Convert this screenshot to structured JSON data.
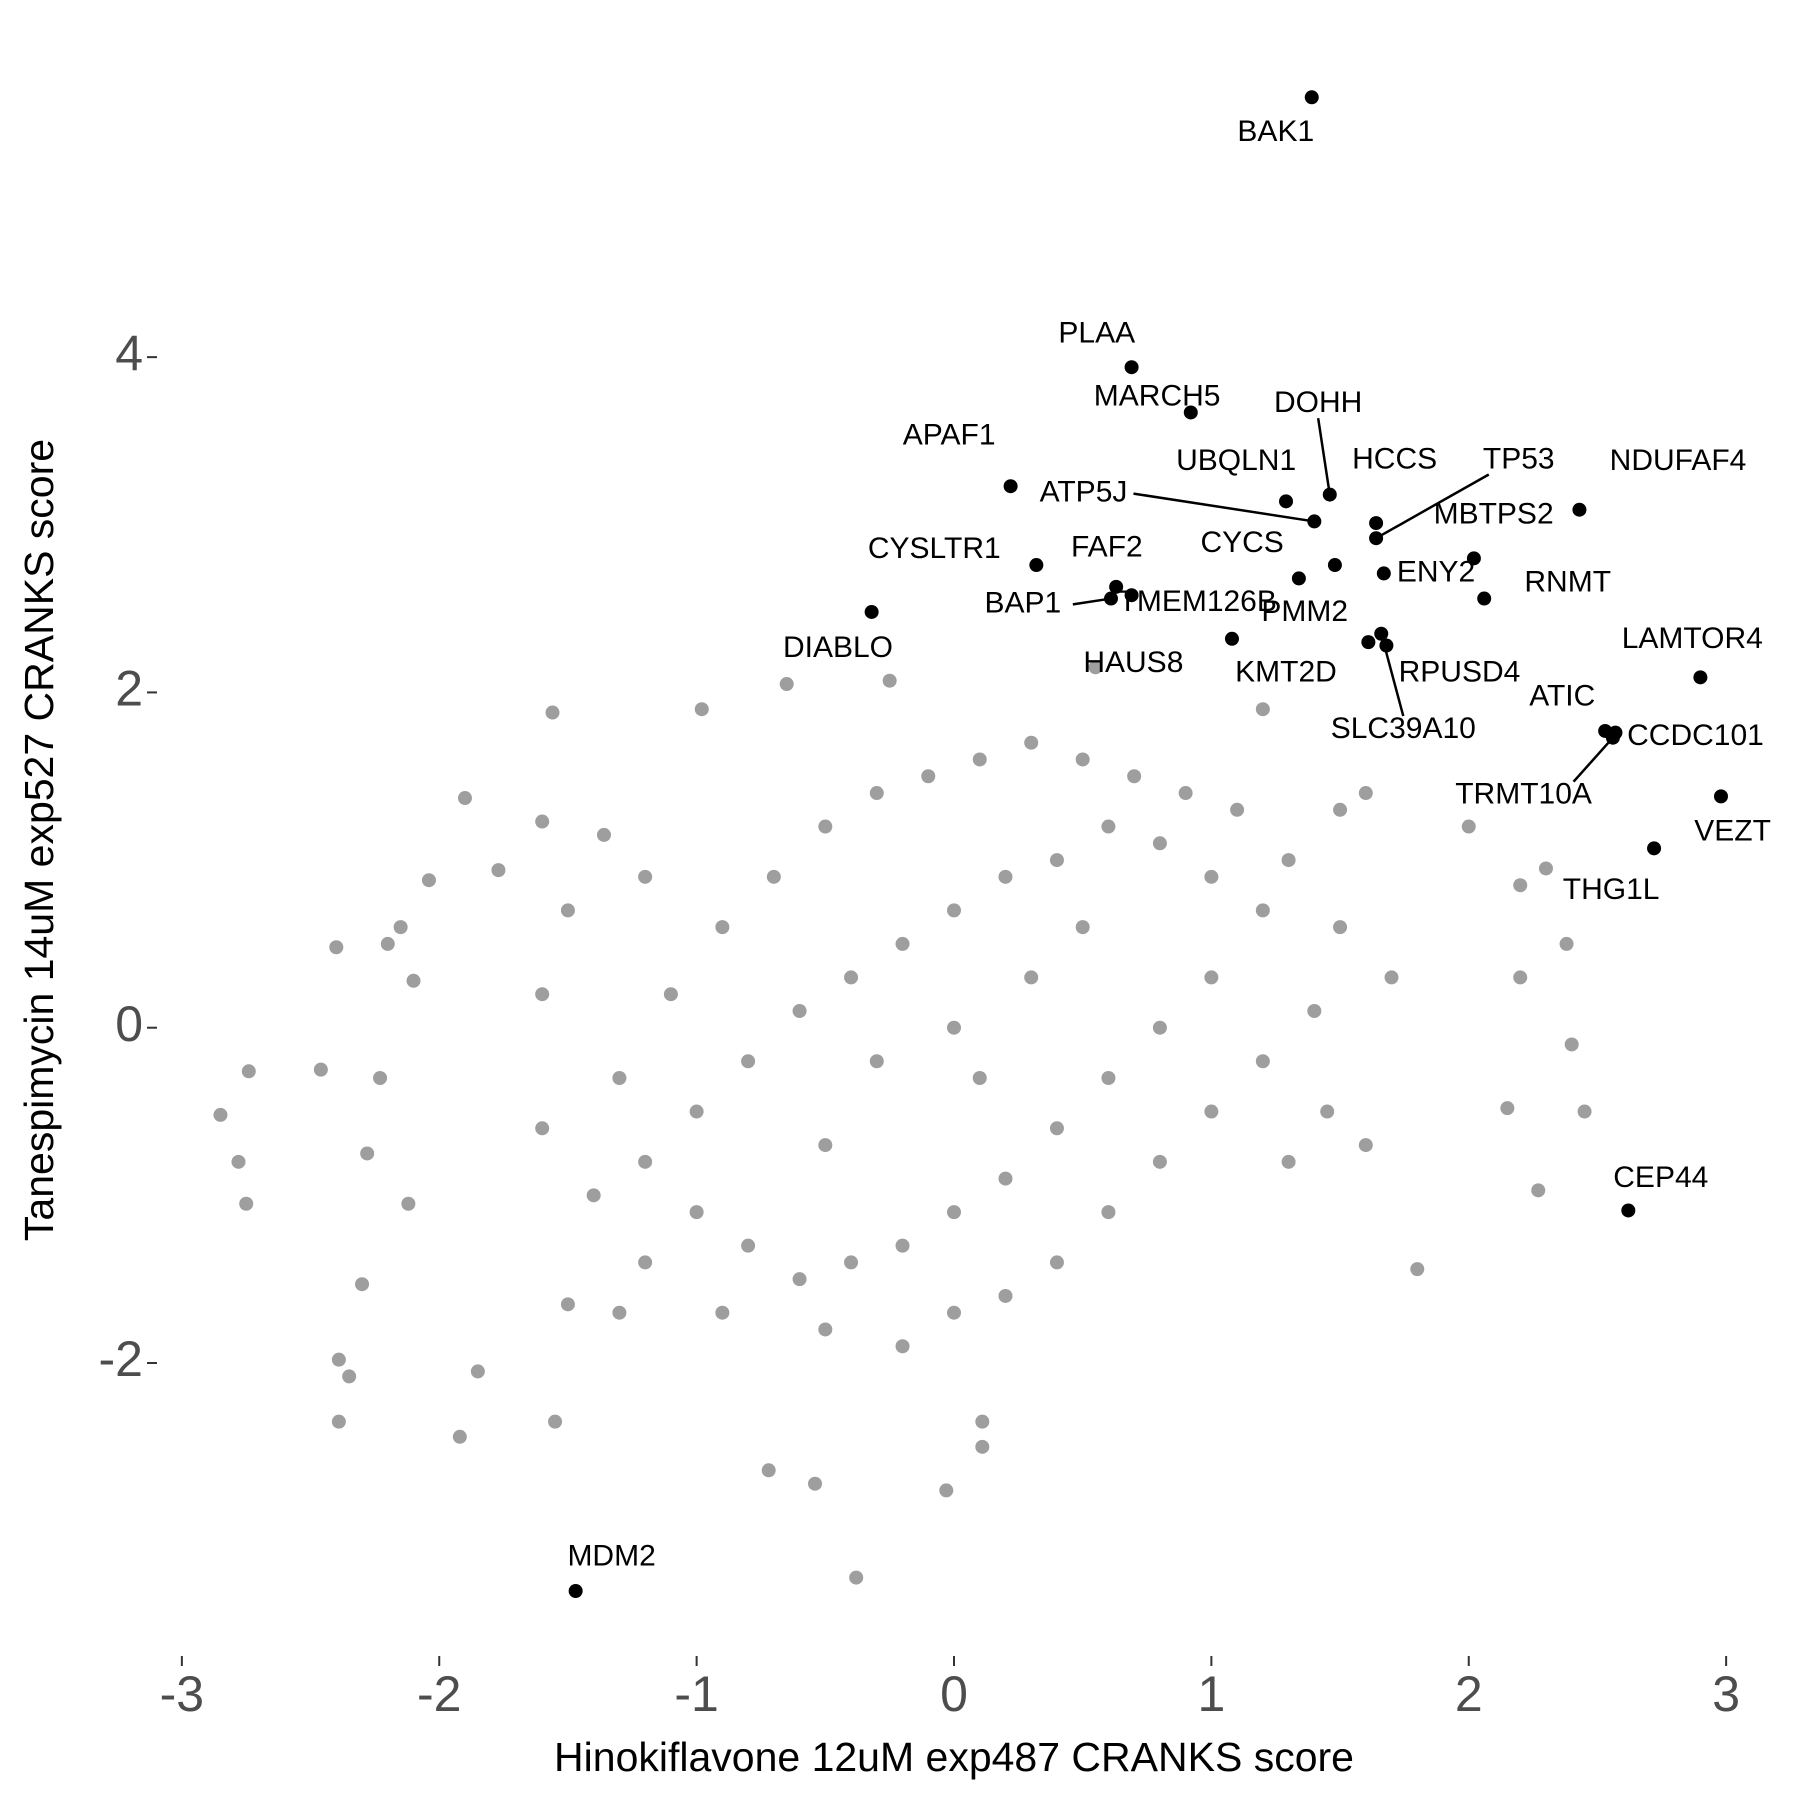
{
  "chart_data": {
    "type": "scatter",
    "xlabel": "Hinokiflavone 12uM exp487 CRANKS score",
    "ylabel": "Tanespimycin 14uM exp527 CRANKS score",
    "xlim": [
      -3.05,
      3.05
    ],
    "ylim": [
      -3.7,
      5.85
    ],
    "xticks": [
      -3,
      -2,
      -1,
      0,
      1,
      2,
      3
    ],
    "yticks": [
      -2,
      0,
      2,
      4
    ],
    "series": [
      {
        "color": "#9e9e9e",
        "x": [
          -2.85,
          -2.78,
          -2.75,
          -2.74,
          -2.4,
          -2.46,
          -2.39,
          -2.39,
          -2.35,
          -2.3,
          -2.28,
          -2.23,
          -2.2,
          -2.15,
          -2.12,
          -2.1,
          -2.04,
          -1.9,
          -1.77,
          -1.6,
          -1.56,
          -1.36,
          -1.55,
          -1.85,
          -1.92,
          -1.5,
          -0.72,
          -0.54,
          -0.38,
          -0.03,
          0.11,
          0.11,
          -0.98,
          -0.65,
          -0.25,
          0.55,
          1.2,
          1.5,
          2.0,
          2.2,
          2.3,
          2.2,
          2.15,
          2.45,
          2.27,
          1.8,
          2.38,
          2.4,
          1.6,
          1.45,
          -1.2,
          -1.0,
          -0.8,
          -0.6,
          -0.4,
          -0.2,
          0,
          0.2,
          0.4,
          0.6,
          0.8,
          1.0,
          1.2,
          1.0,
          0.8,
          0.6,
          0.4,
          0.2,
          0,
          -0.2,
          -0.4,
          -0.6,
          -0.8,
          -1.0,
          -1.2,
          -1.4,
          -1.3,
          -1.1,
          -0.9,
          -0.7,
          -0.5,
          -0.3,
          -0.1,
          0.1,
          0.3,
          0.5,
          0.7,
          0.9,
          1.1,
          1.3,
          1.5,
          1.4,
          1.2,
          1.0,
          0.8,
          0.6,
          0.4,
          0.2,
          0,
          -0.2,
          -0.5,
          -0.9,
          -1.3,
          -1.6,
          -1.6,
          -1.5,
          -1.2,
          1.6,
          1.7,
          1.3,
          0,
          0.1,
          -0.3,
          0.3,
          -0.5,
          0.5
        ],
        "y": [
          -0.52,
          -0.8,
          -1.05,
          -0.26,
          0.48,
          -0.25,
          -2.35,
          -1.98,
          -2.08,
          -1.53,
          -0.75,
          -0.3,
          0.5,
          0.6,
          -1.05,
          0.28,
          0.88,
          1.37,
          0.94,
          1.23,
          1.88,
          1.15,
          -2.35,
          -2.05,
          -2.44,
          -1.65,
          -2.64,
          -2.72,
          -3.28,
          -2.76,
          -2.35,
          -2.5,
          1.9,
          2.05,
          2.07,
          2.15,
          1.9,
          1.3,
          1.2,
          0.85,
          0.95,
          0.3,
          -0.48,
          -0.5,
          -0.97,
          -1.44,
          0.5,
          -0.1,
          -0.7,
          -0.5,
          -0.8,
          -0.5,
          -0.2,
          0.1,
          0.3,
          0.5,
          0.7,
          0.9,
          1.0,
          1.2,
          1.1,
          0.9,
          0.7,
          0.3,
          0.0,
          -0.3,
          -0.6,
          -0.9,
          -1.1,
          -1.3,
          -1.4,
          -1.5,
          -1.3,
          -1.1,
          -1.4,
          -1.0,
          -0.3,
          0.2,
          0.6,
          0.9,
          1.2,
          1.4,
          1.5,
          1.6,
          1.7,
          1.6,
          1.5,
          1.4,
          1.3,
          1.0,
          0.6,
          0.1,
          -0.2,
          -0.5,
          -0.8,
          -1.1,
          -1.4,
          -1.6,
          -1.7,
          -1.9,
          -1.8,
          -1.7,
          -1.7,
          -0.6,
          0.2,
          0.7,
          0.9,
          1.4,
          0.3,
          -0.8,
          0,
          -0.3,
          -0.2,
          0.3,
          -0.7,
          0.6
        ]
      },
      {
        "color": "#000000",
        "labels": [
          "BAK1",
          "PLAA",
          "MARCH5",
          "APAF1",
          "DOHH",
          "UBQLN1",
          "ATP5J",
          "HCCS",
          "TP53",
          "NDUFAF4",
          "MBTPS2",
          "CYSLTR1",
          "CYCS",
          "FAF2",
          "BAP1",
          "TMEM126B",
          "ENY2",
          "PMM2",
          "RNMT",
          "DIABLO",
          "HAUS8",
          "KMT2D",
          "RPUSD4",
          "SLC39A10",
          "LAMTOR4",
          "ATIC",
          "CCDC101",
          "TRMT10A",
          "VEZT",
          "THG1L",
          "CEP44",
          "MDM2"
        ],
        "x": [
          1.39,
          0.69,
          0.92,
          0.22,
          1.46,
          1.29,
          1.4,
          1.64,
          1.64,
          2.43,
          2.02,
          0.32,
          1.48,
          0.63,
          0.61,
          0.69,
          1.67,
          1.34,
          2.06,
          -0.32,
          1.08,
          1.61,
          1.68,
          1.66,
          2.9,
          2.53,
          2.57,
          2.56,
          2.98,
          2.72,
          2.62,
          -1.47
        ],
        "y": [
          5.55,
          3.94,
          3.67,
          3.23,
          3.18,
          3.14,
          3.02,
          3.01,
          2.92,
          3.09,
          2.8,
          2.76,
          2.76,
          2.63,
          2.56,
          2.58,
          2.71,
          2.68,
          2.56,
          2.48,
          2.32,
          2.3,
          2.28,
          2.35,
          2.09,
          1.77,
          1.76,
          1.73,
          1.38,
          1.07,
          -1.09,
          -3.36
        ]
      }
    ]
  }
}
